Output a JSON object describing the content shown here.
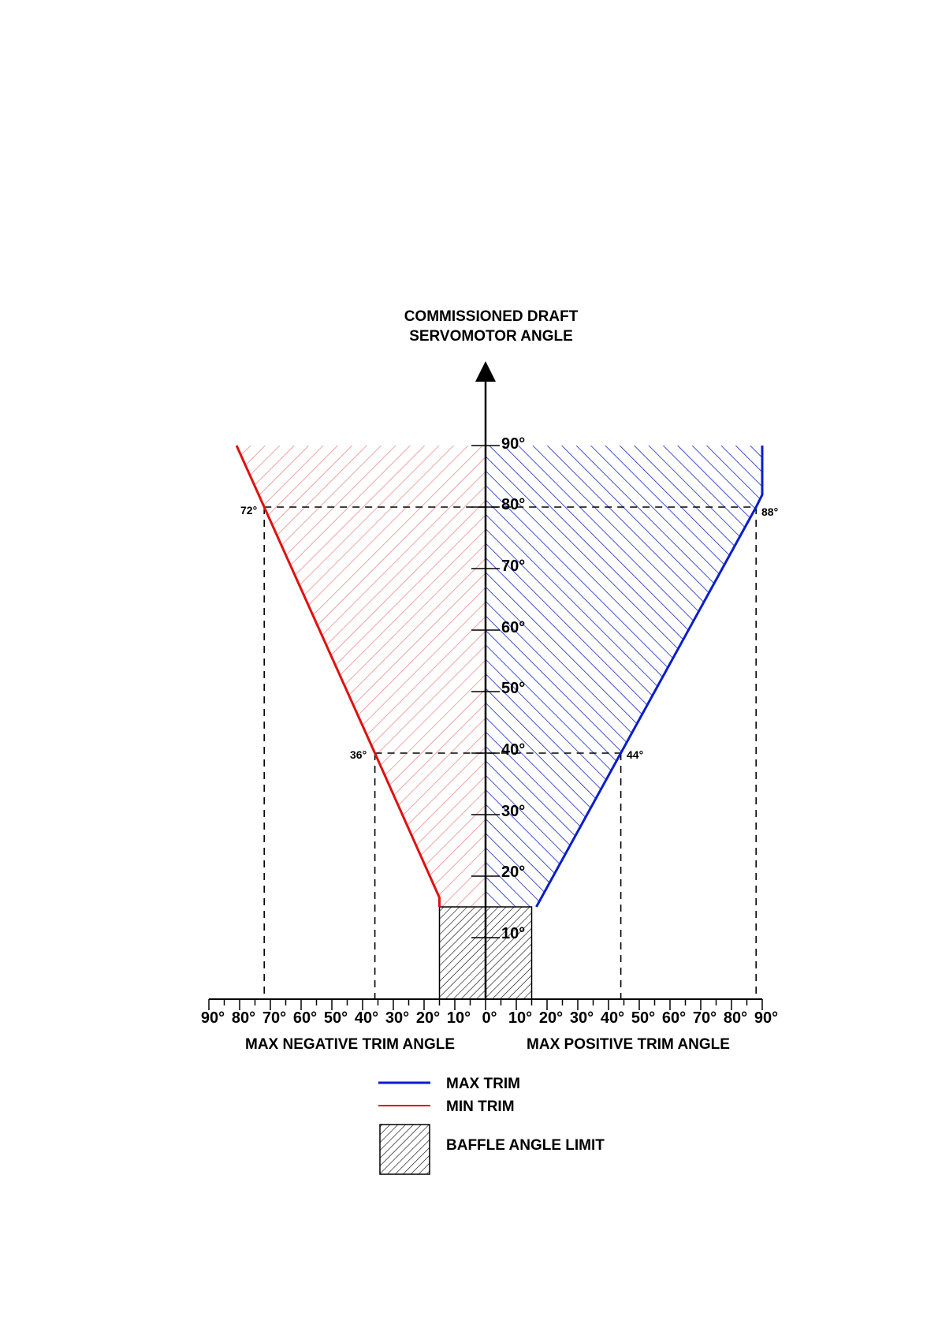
{
  "title": {
    "line1": "COMMISSIONED DRAFT",
    "line2": "SERVOMOTOR ANGLE"
  },
  "y_axis": {
    "ticks": [
      "10°",
      "20°",
      "30°",
      "40°",
      "50°",
      "60°",
      "70°",
      "80°",
      "90°"
    ]
  },
  "x_axis": {
    "negative_ticks": [
      "90°",
      "80°",
      "70°",
      "60°",
      "50°",
      "40°",
      "30°",
      "20°",
      "10°"
    ],
    "zero_tick": "0°",
    "positive_ticks": [
      "10°",
      "20°",
      "30°",
      "40°",
      "50°",
      "60°",
      "70°",
      "80°",
      "90°"
    ],
    "negative_label": "MAX NEGATIVE TRIM ANGLE",
    "positive_label": "MAX POSITIVE TRIM ANGLE"
  },
  "annotations": {
    "min_at_80": "72°",
    "max_at_80": "88°",
    "min_at_40": "36°",
    "max_at_40": "44°"
  },
  "legend": {
    "max_trim": "MAX TRIM",
    "min_trim": "MIN TRIM",
    "baffle": "BAFFLE ANGLE LIMIT"
  },
  "colors": {
    "max_trim": "#0a1ec8",
    "min_trim": "#e01010",
    "max_hatch": "#1428c8",
    "min_hatch": "#f08c8c",
    "baffle_hatch": "#000000"
  },
  "chart_data": {
    "type": "line",
    "xlabel": "MAX NEGATIVE TRIM ANGLE / MAX POSITIVE TRIM ANGLE",
    "ylabel": "COMMISSIONED DRAFT SERVOMOTOR ANGLE",
    "xlim": [
      -90,
      90
    ],
    "ylim": [
      0,
      90
    ],
    "series": [
      {
        "name": "MAX TRIM",
        "points": [
          [
            16.5,
            15
          ],
          [
            44,
            40
          ],
          [
            88,
            80
          ],
          [
            90,
            82
          ],
          [
            90,
            90
          ]
        ]
      },
      {
        "name": "MIN TRIM",
        "points": [
          [
            -15,
            15
          ],
          [
            -15,
            16.5
          ],
          [
            -36,
            40
          ],
          [
            -72,
            80
          ],
          [
            -81,
            90
          ]
        ]
      }
    ],
    "baffle_angle_limit": {
      "x": [
        -15,
        15
      ],
      "y": [
        0,
        15
      ]
    },
    "reference_points": [
      {
        "y": 80,
        "min": -72,
        "max": 88
      },
      {
        "y": 40,
        "min": -36,
        "max": 44
      }
    ]
  }
}
